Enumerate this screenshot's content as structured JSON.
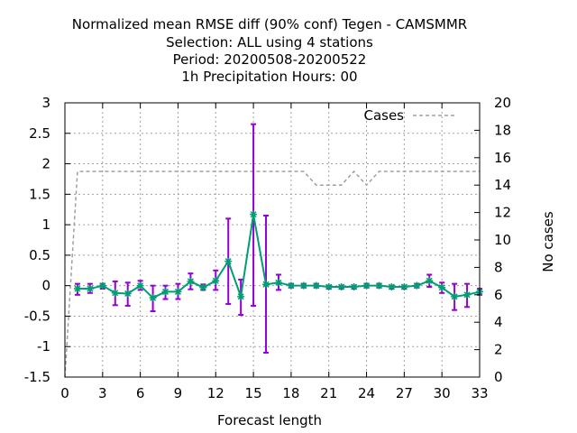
{
  "chart_data": {
    "type": "line",
    "title_lines": [
      "Normalized mean RMSE diff (90% conf) Tegen - CAMSMMR",
      "Selection: ALL using     4 stations",
      "Period: 20200508-20200522",
      "1h Precipitation   Hours:  00"
    ],
    "xlabel": "Forecast length",
    "ylabel": "",
    "y2label": "No cases",
    "xlim": [
      0,
      33
    ],
    "ylim": [
      -1.5,
      3
    ],
    "y2lim": [
      0,
      20
    ],
    "xticks": [
      0,
      3,
      6,
      9,
      12,
      15,
      18,
      21,
      24,
      27,
      30,
      33
    ],
    "yticks": [
      -1.5,
      -1,
      -0.5,
      0,
      0.5,
      1,
      1.5,
      2,
      2.5,
      3
    ],
    "ytick_labels": [
      "-1.5",
      "-1",
      "-0.5",
      "0",
      "0.5",
      "1",
      "1.5",
      "2",
      "2.5",
      "3"
    ],
    "y2ticks": [
      0,
      2,
      4,
      6,
      8,
      10,
      12,
      14,
      16,
      18,
      20
    ],
    "grid": true,
    "legend_position": "top-right",
    "series": [
      {
        "name": "",
        "axis": "y1",
        "color": "#009e73",
        "errorbar_color": "#9400d3",
        "x": [
          1,
          2,
          3,
          4,
          5,
          6,
          7,
          8,
          9,
          10,
          11,
          12,
          13,
          14,
          15,
          16,
          17,
          18,
          19,
          20,
          21,
          22,
          23,
          24,
          25,
          26,
          27,
          28,
          29,
          30,
          31,
          32,
          33
        ],
        "y": [
          -0.05,
          -0.05,
          0.0,
          -0.12,
          -0.13,
          0.0,
          -0.2,
          -0.1,
          -0.1,
          0.07,
          -0.03,
          0.08,
          0.4,
          -0.18,
          1.17,
          0.02,
          0.05,
          0.0,
          0.0,
          0.0,
          -0.02,
          -0.02,
          -0.02,
          0.0,
          0.0,
          -0.02,
          -0.02,
          0.0,
          0.08,
          -0.03,
          -0.18,
          -0.15,
          -0.1
        ],
        "err_low": [
          -0.15,
          -0.12,
          -0.05,
          -0.32,
          -0.33,
          -0.07,
          -0.42,
          -0.22,
          -0.22,
          -0.06,
          -0.07,
          -0.07,
          -0.3,
          -0.48,
          -0.33,
          -1.1,
          -0.07,
          -0.03,
          -0.03,
          -0.03,
          -0.05,
          -0.05,
          -0.05,
          -0.03,
          -0.03,
          -0.05,
          -0.05,
          -0.03,
          -0.02,
          -0.12,
          -0.4,
          -0.35,
          -0.15
        ],
        "err_high": [
          0.03,
          0.03,
          0.03,
          0.07,
          0.05,
          0.08,
          0.0,
          0.0,
          0.03,
          0.2,
          0.02,
          0.25,
          1.1,
          0.1,
          2.65,
          1.15,
          0.18,
          0.03,
          0.03,
          0.03,
          0.0,
          0.0,
          0.0,
          0.03,
          0.03,
          0.0,
          0.0,
          0.03,
          0.18,
          0.05,
          0.03,
          0.03,
          -0.05
        ]
      },
      {
        "name": "Cases",
        "axis": "y2",
        "color": "#a0a0a0",
        "style": "dashed",
        "x": [
          0,
          1,
          2,
          3,
          4,
          5,
          6,
          7,
          8,
          9,
          10,
          11,
          12,
          13,
          14,
          15,
          16,
          17,
          18,
          19,
          20,
          21,
          22,
          23,
          24,
          25,
          26,
          27,
          28,
          29,
          30,
          31,
          32,
          33
        ],
        "y": [
          0,
          15,
          15,
          15,
          15,
          15,
          15,
          15,
          15,
          15,
          15,
          15,
          15,
          15,
          15,
          15,
          15,
          15,
          15,
          15,
          14,
          14,
          14,
          15,
          14,
          15,
          15,
          15,
          15,
          15,
          15,
          15,
          15,
          15
        ]
      }
    ]
  }
}
